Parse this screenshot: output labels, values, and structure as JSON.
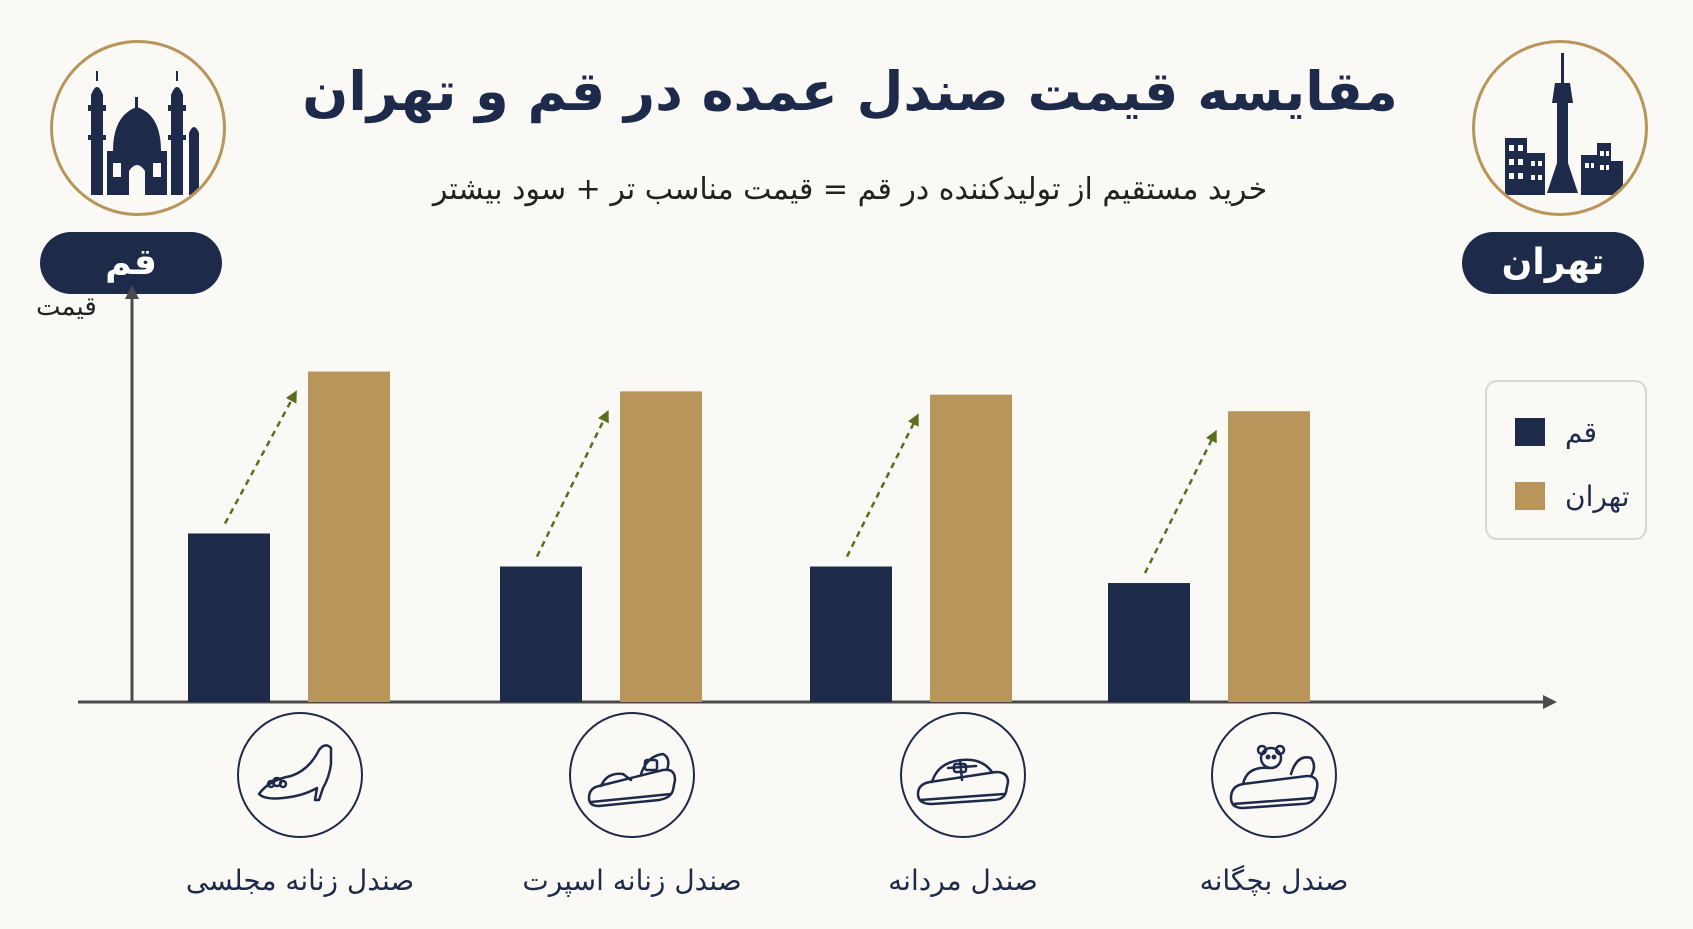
{
  "title": "مقایسه قیمت صندل عمده در قم و تهران",
  "subtitle": "خرید مستقیم از تولیدکننده در قم = قیمت مناسب تر + سود بیشتر",
  "cities": {
    "qom": {
      "label": "قم",
      "icon": "mosque-icon"
    },
    "tehran": {
      "label": "تهران",
      "icon": "milad-tower-icon"
    }
  },
  "colors": {
    "qom": "#1e2a4a",
    "tehran": "#b8955a",
    "arrow": "#5a6e1f",
    "axis": "#4a4a4a"
  },
  "chart_data": {
    "type": "bar",
    "ylabel": "قیمت",
    "xlabel": "",
    "categories": [
      "صندل زنانه مجلسی",
      "صندل زنانه اسپرت",
      "صندل مردانه",
      "صندل بچگانه"
    ],
    "category_icons": [
      "heeled-sandal-icon",
      "sport-sandal-icon",
      "mens-slide-icon",
      "kids-sandal-icon"
    ],
    "series": [
      {
        "name": "قم",
        "values": [
          51,
          41,
          41,
          36
        ]
      },
      {
        "name": "تهران",
        "values": [
          100,
          94,
          93,
          88
        ]
      }
    ],
    "ylim": [
      0,
      115
    ],
    "grid": false,
    "legend_position": "right",
    "trend_arrows": true
  },
  "legend": {
    "items": [
      {
        "label": "قم"
      },
      {
        "label": "تهران"
      }
    ]
  }
}
